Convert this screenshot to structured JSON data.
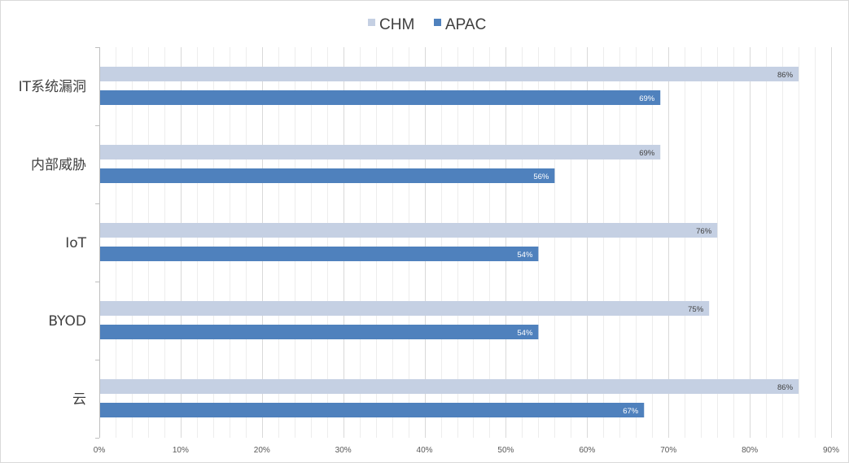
{
  "chart_data": {
    "type": "bar",
    "orientation": "horizontal",
    "title": "",
    "xlabel": "",
    "ylabel": "",
    "categories": [
      "IT系统漏洞",
      "内部威胁",
      "IoT",
      "BYOD",
      "云"
    ],
    "series": [
      {
        "name": "CHM",
        "color": "#c5d0e3",
        "values": [
          86,
          69,
          76,
          75,
          86
        ],
        "label_color": "#404040"
      },
      {
        "name": "APAC",
        "color": "#4f81bd",
        "values": [
          69,
          56,
          54,
          54,
          67
        ],
        "label_color": "#ffffff"
      }
    ],
    "data_labels": [
      [
        "86%",
        "69%",
        "76%",
        "75%",
        "86%"
      ],
      [
        "69%",
        "56%",
        "54%",
        "54%",
        "67%"
      ]
    ],
    "xlim": [
      0,
      90
    ],
    "x_ticks": [
      "0%",
      "10%",
      "20%",
      "30%",
      "40%",
      "50%",
      "60%",
      "70%",
      "80%",
      "90%"
    ],
    "legend_position": "top-center",
    "grid": "vertical major and minor gridlines",
    "colors": {
      "gridline": "#d9d9d9",
      "axis_text": "#595959",
      "category_text": "#404040"
    }
  }
}
